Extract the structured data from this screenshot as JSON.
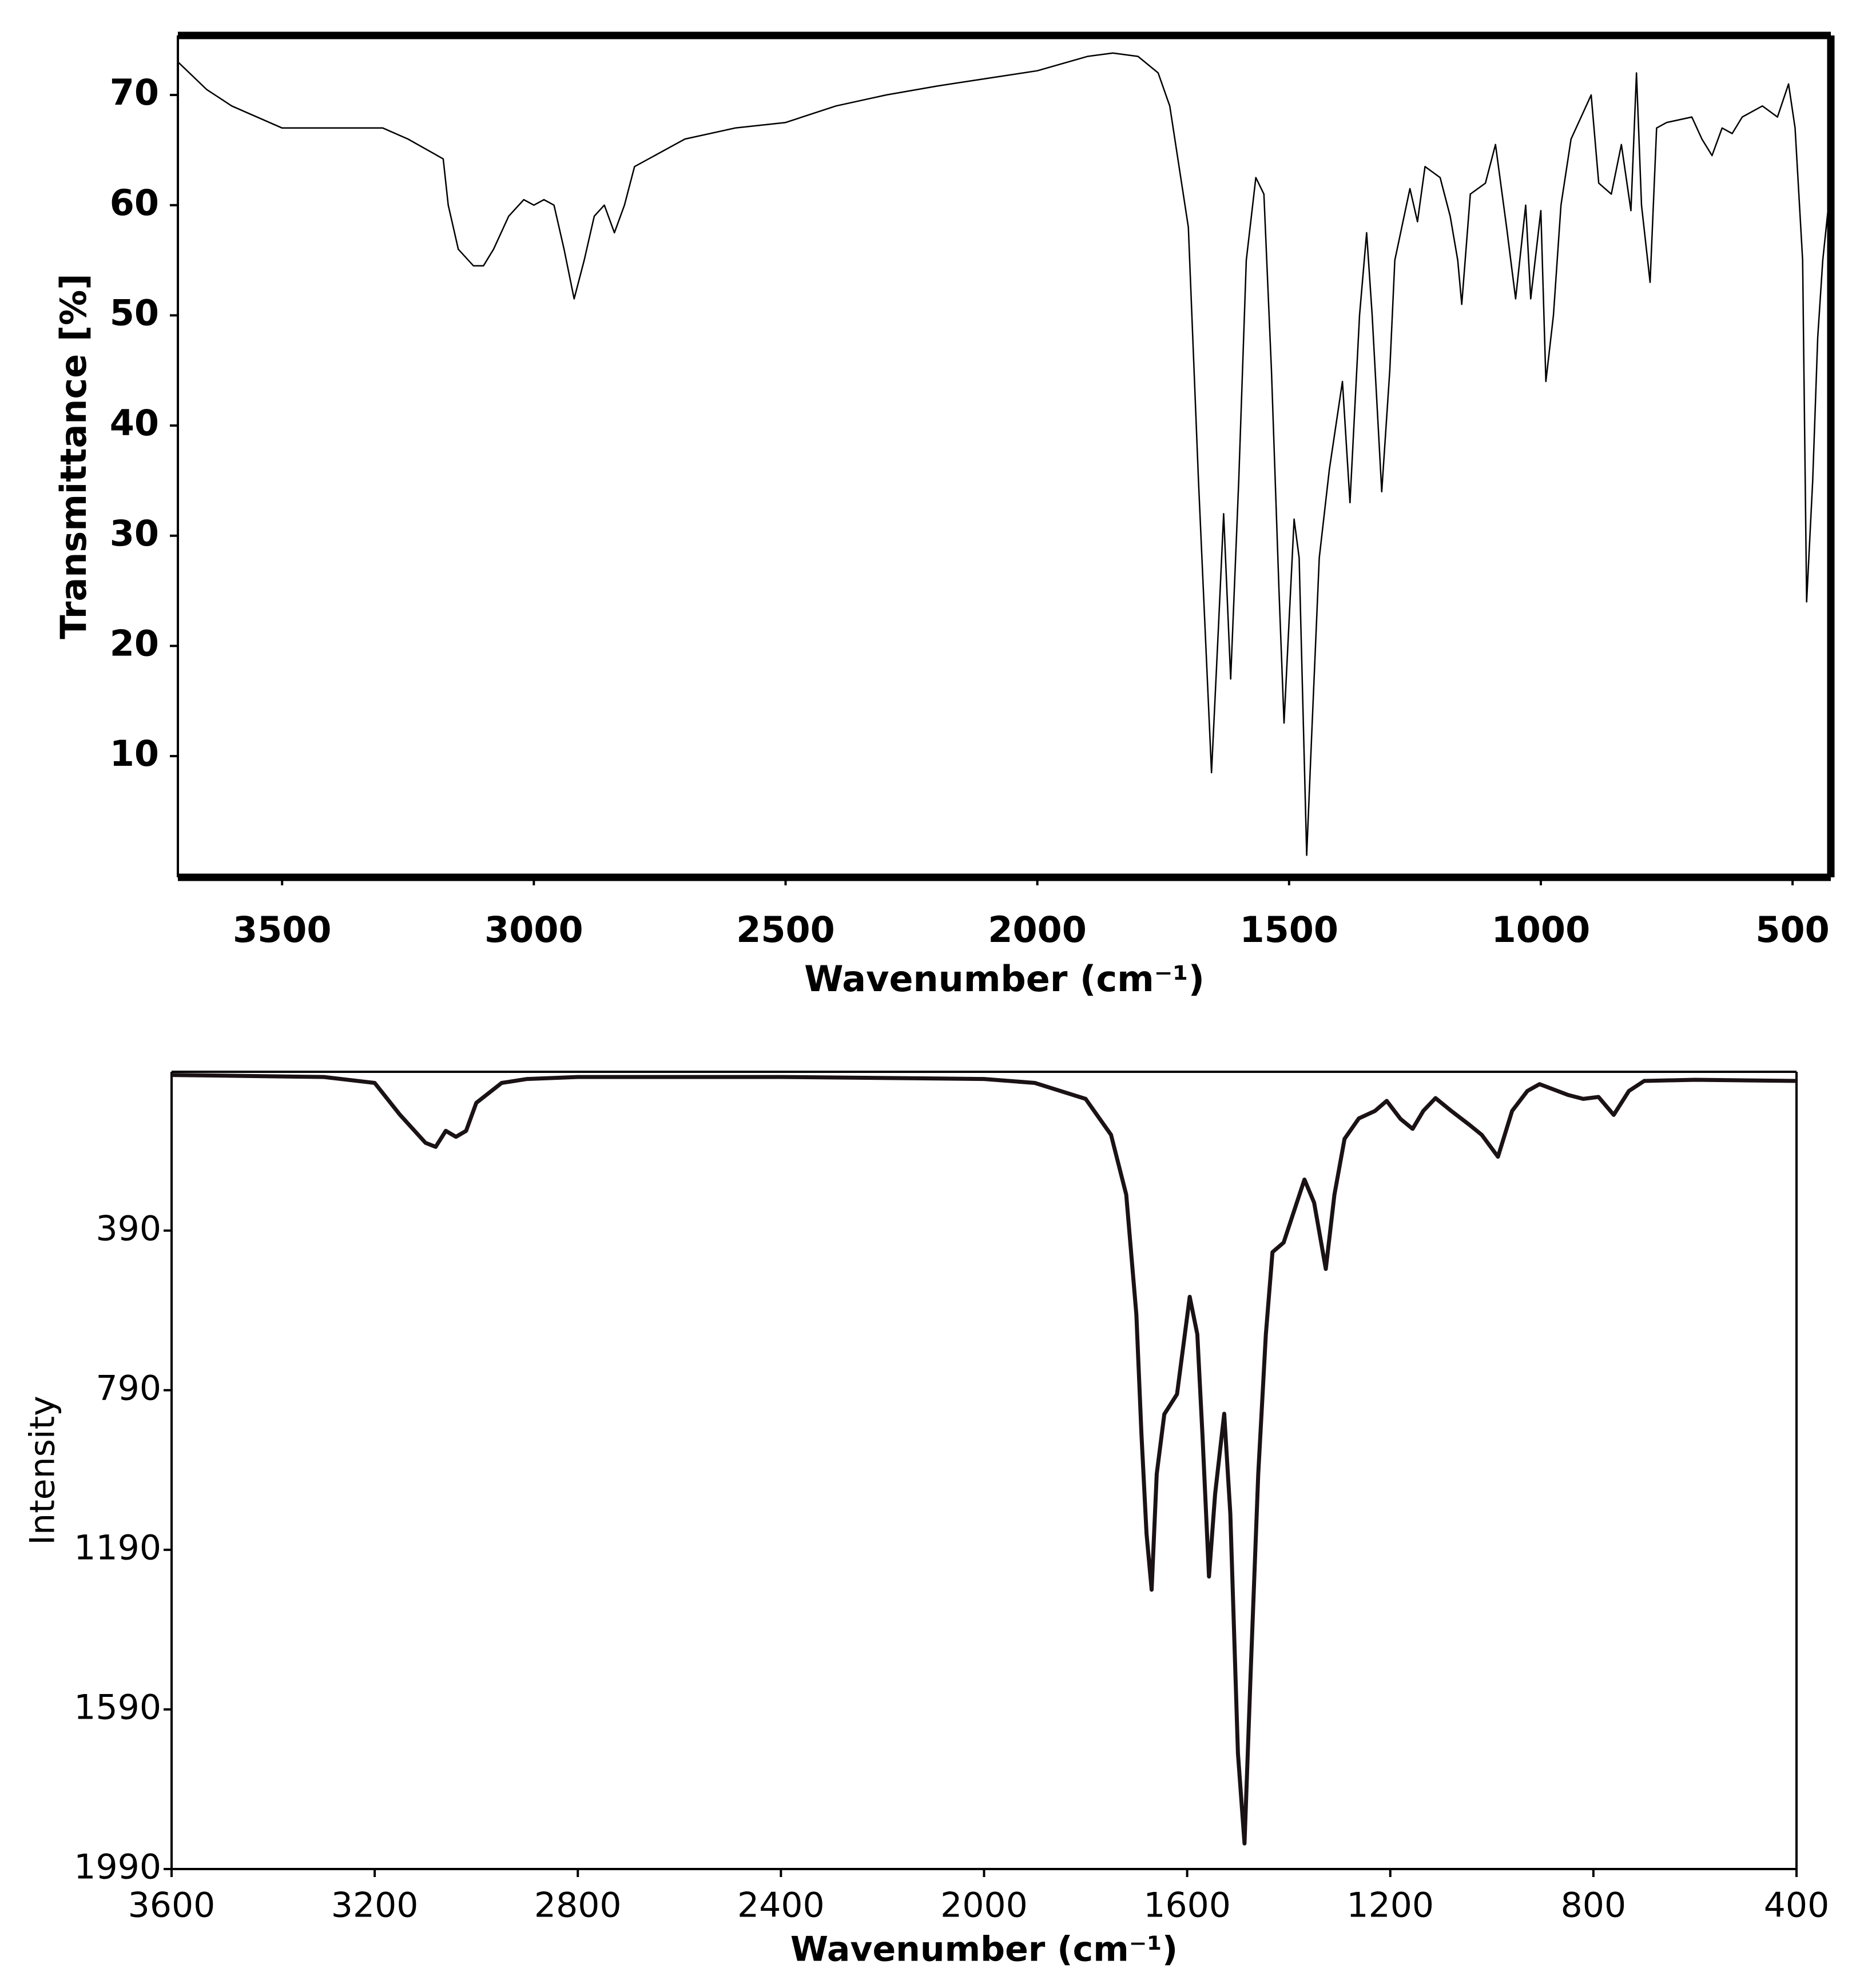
{
  "chart_data": [
    {
      "type": "line",
      "x_label": "Wavenumber (cm⁻¹)",
      "y_label": "Transmittance [%]",
      "color": "#000000",
      "xlim": [
        3707,
        424
      ],
      "ylim": [
        -1,
        75.4
      ],
      "xticks": [
        3500,
        3000,
        2500,
        2000,
        1500,
        1000,
        500
      ],
      "yticks": [
        10,
        20,
        30,
        40,
        50,
        60,
        70
      ],
      "x": [
        3707,
        3650,
        3600,
        3500,
        3400,
        3300,
        3250,
        3180,
        3170,
        3150,
        3120,
        3100,
        3080,
        3050,
        3020,
        3000,
        2980,
        2960,
        2940,
        2920,
        2900,
        2880,
        2860,
        2840,
        2820,
        2800,
        2700,
        2600,
        2500,
        2400,
        2300,
        2200,
        2100,
        2000,
        1900,
        1850,
        1800,
        1760,
        1737,
        1700,
        1680,
        1654,
        1640,
        1630,
        1616,
        1600,
        1585,
        1566,
        1550,
        1535,
        1520,
        1510,
        1490,
        1480,
        1465,
        1455,
        1440,
        1420,
        1394,
        1379,
        1360,
        1346,
        1335,
        1316,
        1300,
        1290,
        1260,
        1245,
        1230,
        1200,
        1180,
        1165,
        1157,
        1140,
        1110,
        1090,
        1068,
        1050,
        1030,
        1020,
        1000,
        990,
        975,
        960,
        940,
        920,
        900,
        885,
        860,
        840,
        821,
        810,
        800,
        783,
        770,
        750,
        700,
        680,
        660,
        640,
        620,
        600,
        560,
        530,
        508,
        495,
        480,
        472,
        460,
        450,
        440,
        424
      ],
      "values": [
        73,
        70.5,
        69,
        67,
        67,
        67,
        66,
        64.2,
        60,
        56,
        54.5,
        54.5,
        56,
        59,
        60.5,
        60,
        60.5,
        60,
        56,
        51.5,
        55,
        59,
        60,
        57.5,
        60,
        63.5,
        66,
        67,
        67.5,
        69,
        70,
        70.8,
        71.5,
        72.2,
        73.5,
        73.8,
        73.5,
        72,
        69,
        58,
        35,
        8.5,
        22,
        32,
        17,
        35,
        55,
        62.5,
        61,
        45,
        25,
        13,
        31.5,
        28,
        1,
        12,
        28,
        36,
        44,
        33,
        50,
        57.5,
        50,
        34,
        45,
        55,
        61.5,
        58.5,
        63.5,
        62.5,
        59,
        55,
        51,
        61,
        62,
        65.5,
        58,
        51.5,
        60,
        51.5,
        59.5,
        44,
        50,
        60,
        66,
        68,
        70,
        62,
        61,
        65.5,
        59.5,
        72,
        60,
        53,
        67,
        67.5,
        68,
        66,
        64.5,
        67,
        66.5,
        68,
        69,
        68,
        71,
        67,
        55,
        24,
        35,
        48,
        55,
        62
      ]
    },
    {
      "type": "line",
      "x_label": "Wavenumber (cm⁻¹)",
      "y_label": "Intensity",
      "color": "#1a1214",
      "xlim": [
        3600,
        400
      ],
      "ylim": [
        1990,
        -8
      ],
      "xticks": [
        3600,
        3200,
        2800,
        2400,
        2000,
        1600,
        1200,
        800,
        400
      ],
      "yticks": [
        390,
        790,
        1190,
        1590,
        1990
      ],
      "x": [
        3600,
        3300,
        3200,
        3150,
        3100,
        3080,
        3060,
        3040,
        3020,
        3000,
        2950,
        2900,
        2800,
        2400,
        2000,
        1900,
        1800,
        1750,
        1720,
        1700,
        1690,
        1680,
        1670,
        1660,
        1645,
        1620,
        1595,
        1580,
        1570,
        1557,
        1545,
        1527,
        1515,
        1500,
        1487,
        1475,
        1460,
        1445,
        1432,
        1410,
        1369,
        1350,
        1327,
        1310,
        1290,
        1262,
        1230,
        1207,
        1180,
        1156,
        1135,
        1111,
        1080,
        1044,
        1020,
        988,
        960,
        930,
        906,
        850,
        820,
        790,
        760,
        730,
        700,
        600,
        400
      ],
      "values": [
        0,
        5,
        20,
        100,
        170,
        180,
        140,
        155,
        140,
        70,
        20,
        10,
        5,
        5,
        10,
        20,
        60,
        150,
        300,
        600,
        900,
        1150,
        1290,
        1000,
        850,
        800,
        556,
        650,
        900,
        1257,
        1050,
        849,
        1100,
        1700,
        1926,
        1500,
        1000,
        650,
        444,
        420,
        262,
        320,
        486,
        300,
        160,
        109,
        90,
        65,
        110,
        135,
        90,
        58,
        90,
        125,
        150,
        205,
        90,
        40,
        23,
        50,
        60,
        55,
        100,
        40,
        15,
        12,
        15
      ]
    }
  ]
}
